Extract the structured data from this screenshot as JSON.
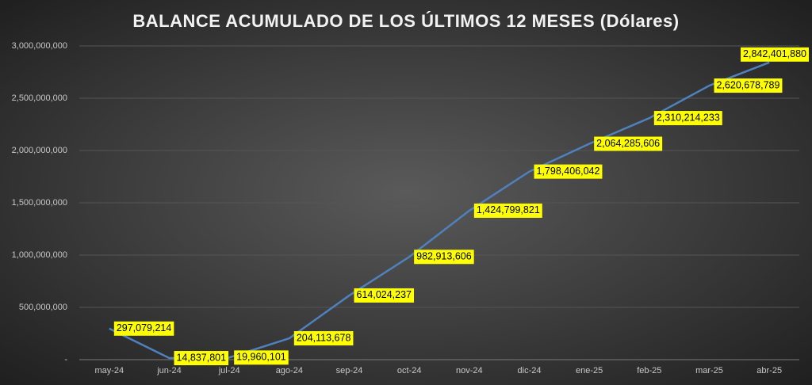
{
  "chart_data": {
    "type": "line",
    "title": "BALANCE ACUMULADO DE LOS ÚLTIMOS 12 MESES (Dólares)",
    "categories": [
      "may-24",
      "jun-24",
      "jul-24",
      "ago-24",
      "sep-24",
      "oct-24",
      "nov-24",
      "dic-24",
      "ene-25",
      "feb-25",
      "mar-25",
      "abr-25"
    ],
    "values": [
      297079214,
      14837801,
      19960101,
      204113678,
      614024237,
      982913606,
      1424799821,
      1798406042,
      2064285606,
      2310214233,
      2620678789,
      2842401880
    ],
    "value_labels": [
      "297,079,214",
      "14,837,801",
      "19,960,101",
      "204,113,678",
      "614,024,237",
      "982,913,606",
      "1,424,799,821",
      "1,798,406,042",
      "2,064,285,606",
      "2,310,214,233",
      "2,620,678,789",
      "2,842,401,880"
    ],
    "color": "#4f81bd",
    "ylim": [
      0,
      3000000000
    ],
    "yticks": [
      {
        "value": 0,
        "label": "-"
      },
      {
        "value": 500000000,
        "label": "500,000,000"
      },
      {
        "value": 1000000000,
        "label": "1,000,000,000"
      },
      {
        "value": 1500000000,
        "label": "1,500,000,000"
      },
      {
        "value": 2000000000,
        "label": "2,000,000,000"
      },
      {
        "value": 2500000000,
        "label": "2,500,000,000"
      },
      {
        "value": 3000000000,
        "label": "3,000,000,000"
      }
    ],
    "grid": true
  }
}
